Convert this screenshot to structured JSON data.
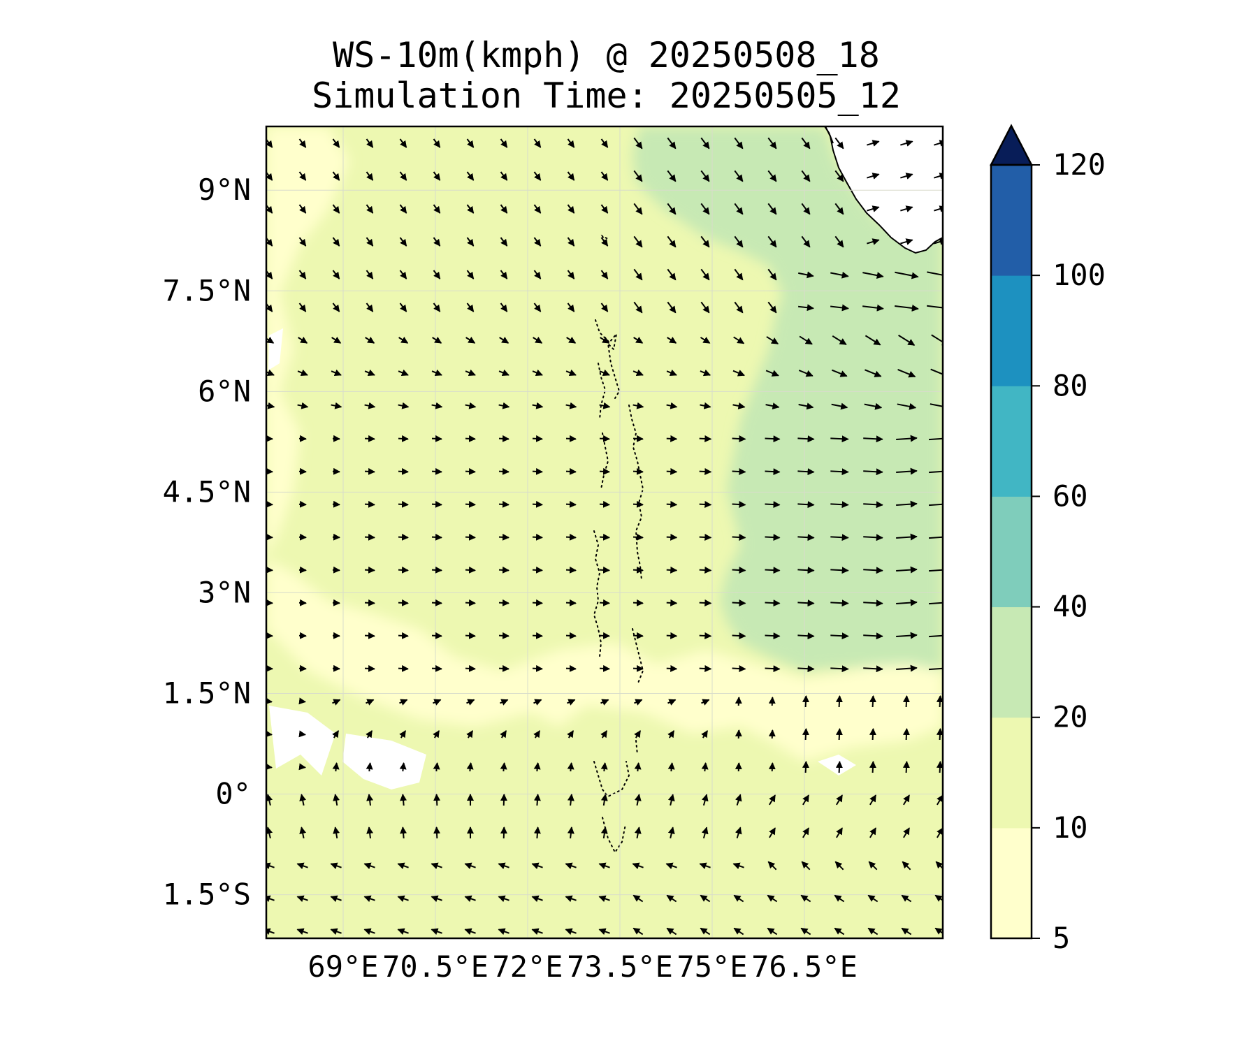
{
  "title": {
    "line1": "WS-10m(kmph) @ 20250508_18",
    "line2": "Simulation Time: 20250505_12"
  },
  "map": {
    "lon_range": [
      67.75,
      78.75
    ],
    "lat_range": [
      -2.15,
      9.95
    ],
    "lon_ticks": [
      {
        "value": 69,
        "label": "69°E"
      },
      {
        "value": 70.5,
        "label": "70.5°E"
      },
      {
        "value": 72,
        "label": "72°E"
      },
      {
        "value": 73.5,
        "label": "73.5°E"
      },
      {
        "value": 75,
        "label": "75°E"
      },
      {
        "value": 76.5,
        "label": "76.5°E"
      }
    ],
    "lat_ticks": [
      {
        "value": 9,
        "label": "9°N"
      },
      {
        "value": 7.5,
        "label": "7.5°N"
      },
      {
        "value": 6,
        "label": "6°N"
      },
      {
        "value": 4.5,
        "label": "4.5°N"
      },
      {
        "value": 3,
        "label": "3°N"
      },
      {
        "value": 1.5,
        "label": "1.5°N"
      },
      {
        "value": 0,
        "label": "0°"
      },
      {
        "value": -1.5,
        "label": "1.5°S"
      }
    ],
    "gridlines": true,
    "vector_field": "10 m wind direction arrows"
  },
  "colorbar": {
    "levels": [
      5,
      10,
      20,
      40,
      60,
      80,
      100,
      120
    ],
    "tick_labels": [
      "5",
      "10",
      "20",
      "40",
      "60",
      "80",
      "100",
      "120"
    ],
    "colors": [
      "#ffffcc",
      "#edf8b1",
      "#c7e9b4",
      "#7fcdbb",
      "#41b6c4",
      "#1d91c0",
      "#225ea8",
      "#0c2c84"
    ],
    "extend_color": "#081d58",
    "extend": "max"
  }
}
